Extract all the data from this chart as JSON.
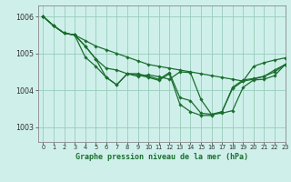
{
  "title": "Graphe pression niveau de la mer (hPa)",
  "background_color": "#cff0ea",
  "grid_color": "#99ccbb",
  "line_color": "#1a6e2e",
  "xlim": [
    -0.5,
    23
  ],
  "ylim": [
    1002.6,
    1006.3
  ],
  "yticks": [
    1003,
    1004,
    1005,
    1006
  ],
  "xticks": [
    0,
    1,
    2,
    3,
    4,
    5,
    6,
    7,
    8,
    9,
    10,
    11,
    12,
    13,
    14,
    15,
    16,
    17,
    18,
    19,
    20,
    21,
    22,
    23
  ],
  "series": [
    [
      1006.0,
      1005.75,
      1005.55,
      1005.5,
      1005.35,
      1005.2,
      1005.1,
      1005.0,
      1004.9,
      1004.8,
      1004.7,
      1004.65,
      1004.6,
      1004.55,
      1004.5,
      1004.45,
      1004.4,
      1004.35,
      1004.3,
      1004.25,
      1004.65,
      1004.75,
      1004.82,
      1004.88
    ],
    [
      1006.0,
      1005.75,
      1005.55,
      1005.5,
      1005.2,
      1004.85,
      1004.6,
      1004.55,
      1004.45,
      1004.38,
      1004.42,
      1004.37,
      1004.3,
      1004.5,
      1004.48,
      1003.75,
      1003.35,
      1003.38,
      1003.45,
      1004.08,
      1004.28,
      1004.3,
      1004.4,
      1004.7
    ],
    [
      1006.0,
      1005.75,
      1005.55,
      1005.5,
      1005.2,
      1004.85,
      1004.35,
      1004.15,
      1004.45,
      1004.45,
      1004.38,
      1004.3,
      1004.48,
      1003.8,
      1003.72,
      1003.38,
      1003.35,
      1003.42,
      1004.08,
      1004.28,
      1004.32,
      1004.38,
      1004.55,
      1004.7
    ],
    [
      1006.0,
      1005.75,
      1005.55,
      1005.5,
      1004.9,
      1004.65,
      1004.35,
      1004.15,
      1004.45,
      1004.42,
      1004.35,
      1004.27,
      1004.45,
      1003.62,
      1003.42,
      1003.32,
      1003.32,
      1003.42,
      1004.05,
      1004.25,
      1004.3,
      1004.38,
      1004.5,
      1004.7
    ]
  ]
}
